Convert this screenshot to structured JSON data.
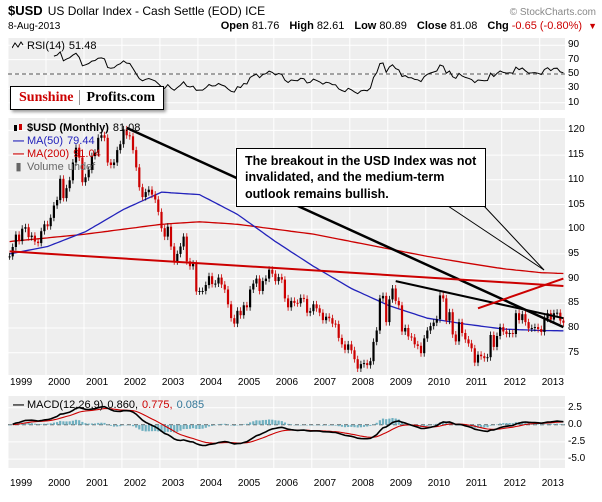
{
  "header": {
    "symbol": "$USD",
    "title": "US Dollar Index - Cash Settle (EOD) ICE",
    "copyright": "© StockCharts.com",
    "date": "8-Aug-2013",
    "change_icon": "▼",
    "quote": {
      "open_label": "Open",
      "open": "81.76",
      "high_label": "High",
      "high": "82.61",
      "low_label": "Low",
      "low": "80.89",
      "close_label": "Close",
      "close": "81.08",
      "chg_label": "Chg",
      "chg": "-0.65 (-0.80%)"
    }
  },
  "logo": {
    "part1": "Sunshine",
    "part2": "Profits.com"
  },
  "icons": {
    "line_icon": "—",
    "volume_icon": "▮"
  },
  "rsi_panel": {
    "label": "RSI(14)",
    "value": "51.48",
    "axis": [
      90,
      70,
      50,
      30,
      10
    ]
  },
  "main_panel": {
    "legend_symbol": "$USD (Monthly)",
    "legend_value": "81.08",
    "ma50_label": "MA(50)",
    "ma50_value": "79.44",
    "ma200_label": "MA(200)",
    "ma200_value": "91.04",
    "volume_label": "Volume",
    "volume_value": "undef",
    "axis": [
      120,
      115,
      110,
      105,
      100,
      95,
      90,
      85,
      80,
      75
    ]
  },
  "annotation": {
    "text": "The breakout in the USD Index was not invalidated, and the medium-term outlook remains bullish."
  },
  "macd_panel": {
    "label": "MACD(12,26,9)",
    "values": [
      "0.860,",
      "0.775,",
      "0.085"
    ],
    "axis": [
      "2.5",
      "0.0",
      "-2.5",
      "-5.0"
    ]
  },
  "x_axis": {
    "years": [
      "1999",
      "2000",
      "2001",
      "2002",
      "2003",
      "2004",
      "2005",
      "2006",
      "2007",
      "2008",
      "2009",
      "2010",
      "2011",
      "2012",
      "2013"
    ]
  },
  "colors": {
    "up": "#000000",
    "down": "#CC0000",
    "ma50": "#2222BB",
    "ma200": "#CC0000",
    "macd": "#000000",
    "signal": "#CC0000",
    "hist": "#6FB0C0",
    "grid": "#FFFFFF",
    "panel_bg": "#EEEEEE",
    "accent_red": "#CC0000"
  },
  "chart_data": {
    "type": "candlestick",
    "title": "$USD US Dollar Index - Cash Settle (EOD) ICE (Monthly)",
    "timeframe": "monthly",
    "start": "1999-01",
    "end": "2013-08",
    "last_ohlc": {
      "open": 81.76,
      "high": 82.61,
      "low": 80.89,
      "close": 81.08,
      "chg_pct": -0.8
    },
    "rsi_current": 51.48,
    "ma50_current": 79.44,
    "ma200_current": 91.04,
    "macd_current": [
      0.86,
      0.775,
      0.085
    ],
    "price_axis_range": [
      70.5,
      122.5
    ],
    "price_axis_ticks": [
      120,
      115,
      110,
      105,
      100,
      95,
      90,
      85,
      80,
      75
    ],
    "rsi_axis_ticks": [
      90,
      70,
      50,
      30,
      10
    ],
    "macd_axis_ticks": [
      2.5,
      0.0,
      -2.5,
      -5.0
    ],
    "rsi_period": 14,
    "macd_params": [
      12,
      26,
      9
    ],
    "closes": [
      94.5,
      96.4,
      98.9,
      97.6,
      100.1,
      100.4,
      98.4,
      98.7,
      97.5,
      97.2,
      99.6,
      101.0,
      100.6,
      102.3,
      104.8,
      105.9,
      110.2,
      106.3,
      108.3,
      109.9,
      113.5,
      116.5,
      114.5,
      109.5,
      110.5,
      112.0,
      114.8,
      115.5,
      118.5,
      119.0,
      118.5,
      113.5,
      113.0,
      113.5,
      116.0,
      117.2,
      120.2,
      119.0,
      118.8,
      116.0,
      112.5,
      108.5,
      106.5,
      107.5,
      108.0,
      107.0,
      106.0,
      103.5,
      100.2,
      98.5,
      100.5,
      96.5,
      93.5,
      95.0,
      96.5,
      98.5,
      93.5,
      92.5,
      93.0,
      87.4,
      87.5,
      87.5,
      88.7,
      90.5,
      88.9,
      89.0,
      90.2,
      88.8,
      87.8,
      84.8,
      82.0,
      80.9,
      83.5,
      82.6,
      84.6,
      84.2,
      87.8,
      89.0,
      90.0,
      87.5,
      89.5,
      90.0,
      91.8,
      91.0,
      89.5,
      90.3,
      89.8,
      86.0,
      84.2,
      85.5,
      85.1,
      85.0,
      86.1,
      85.9,
      83.1,
      83.4,
      84.8,
      84.0,
      83.1,
      81.6,
      82.3,
      82.0,
      80.9,
      80.8,
      78.0,
      76.7,
      75.6,
      76.7,
      75.5,
      73.7,
      71.8,
      72.7,
      72.9,
      72.5,
      73.3,
      77.2,
      79.5,
      86.0,
      86.5,
      81.2,
      85.8,
      88.0,
      85.5,
      84.6,
      79.3,
      80.0,
      78.3,
      78.1,
      76.7,
      76.4,
      74.9,
      77.9,
      79.5,
      80.4,
      81.1,
      81.8,
      86.6,
      86.0,
      81.5,
      83.2,
      78.7,
      77.3,
      81.2,
      79.0,
      77.7,
      76.9,
      75.9,
      73.0,
      74.6,
      74.3,
      73.9,
      74.1,
      78.6,
      76.2,
      78.4,
      80.2,
      79.3,
      78.8,
      79.0,
      78.8,
      83.0,
      81.6,
      82.8,
      81.2,
      79.9,
      80.0,
      80.2,
      79.8,
      79.2,
      81.9,
      83.0,
      81.7,
      83.0,
      83.1,
      81.5,
      81.08
    ],
    "ma50_samples": [
      [
        0,
        95.0
      ],
      [
        12,
        96.5
      ],
      [
        24,
        99.5
      ],
      [
        36,
        104.0
      ],
      [
        48,
        107.5
      ],
      [
        60,
        107.0
      ],
      [
        72,
        103.0
      ],
      [
        84,
        97.5
      ],
      [
        96,
        92.5
      ],
      [
        108,
        88.0
      ],
      [
        120,
        84.5
      ],
      [
        132,
        82.0
      ],
      [
        144,
        80.8
      ],
      [
        156,
        79.8
      ],
      [
        168,
        79.5
      ],
      [
        175,
        79.44
      ]
    ],
    "ma200_samples": [
      [
        0,
        97.5
      ],
      [
        24,
        99.0
      ],
      [
        48,
        101.0
      ],
      [
        60,
        101.5
      ],
      [
        72,
        101.0
      ],
      [
        84,
        100.0
      ],
      [
        96,
        99.0
      ],
      [
        108,
        97.5
      ],
      [
        120,
        96.0
      ],
      [
        132,
        94.5
      ],
      [
        144,
        93.2
      ],
      [
        156,
        92.0
      ],
      [
        168,
        91.2
      ],
      [
        175,
        91.04
      ]
    ],
    "overlay_lines": [
      {
        "name": "long-term-declining-resistance",
        "color": "#000000",
        "width": 2.5,
        "from": [
          37,
          120.5
        ],
        "to": [
          175,
          80.2
        ]
      },
      {
        "name": "medium-term-declining-resistance",
        "color": "#000000",
        "width": 2,
        "from": [
          122,
          89.5
        ],
        "to": [
          175,
          82.0
        ]
      },
      {
        "name": "declining-red-resistance",
        "color": "#CC0000",
        "width": 2,
        "from": [
          0,
          95.5
        ],
        "to": [
          175,
          88.5
        ]
      },
      {
        "name": "rising-red-support",
        "color": "#CC0000",
        "width": 2,
        "from": [
          148,
          84.0
        ],
        "to": [
          175,
          90.0
        ]
      }
    ]
  }
}
